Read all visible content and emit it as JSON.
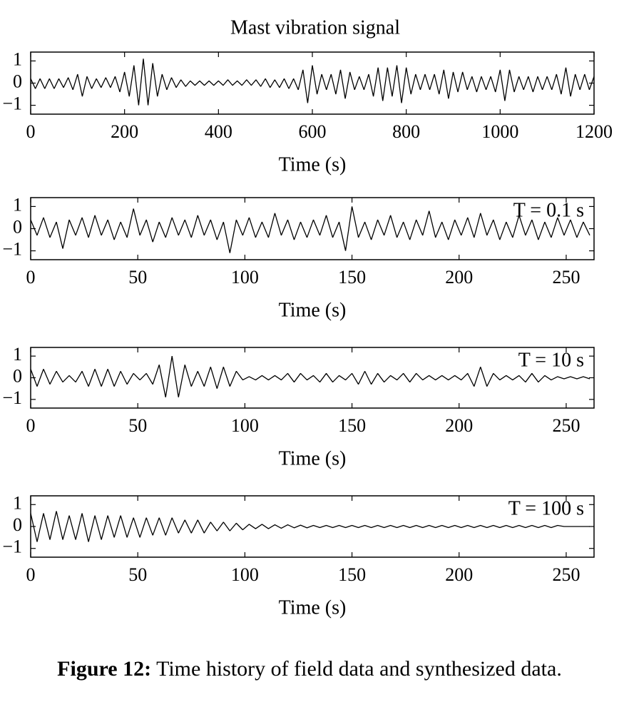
{
  "chart_data": [
    {
      "type": "line",
      "title": "Mast vibration signal",
      "xlabel": "Time (s)",
      "color": "#000000",
      "xlim": [
        0,
        1200
      ],
      "ylim": [
        -1.4,
        1.4
      ],
      "xticks": [
        0,
        200,
        400,
        600,
        800,
        1000,
        1200
      ],
      "yticks": [
        1,
        0,
        {
          "value": -1,
          "label": "−1"
        }
      ],
      "x": [
        0,
        10,
        20,
        30,
        40,
        50,
        60,
        70,
        80,
        90,
        100,
        110,
        120,
        130,
        140,
        150,
        160,
        170,
        180,
        190,
        200,
        210,
        220,
        230,
        240,
        250,
        260,
        270,
        280,
        290,
        300,
        310,
        320,
        330,
        340,
        350,
        360,
        370,
        380,
        390,
        400,
        410,
        420,
        430,
        440,
        450,
        460,
        470,
        480,
        490,
        500,
        510,
        520,
        530,
        540,
        550,
        560,
        570,
        580,
        590,
        600,
        610,
        620,
        630,
        640,
        650,
        660,
        670,
        680,
        690,
        700,
        710,
        720,
        730,
        740,
        750,
        760,
        770,
        780,
        790,
        800,
        810,
        820,
        830,
        840,
        850,
        860,
        870,
        880,
        890,
        900,
        910,
        920,
        930,
        940,
        950,
        960,
        970,
        980,
        990,
        1000,
        1010,
        1020,
        1030,
        1040,
        1050,
        1060,
        1070,
        1080,
        1090,
        1100,
        1110,
        1120,
        1130,
        1140,
        1150,
        1160,
        1170,
        1180,
        1190,
        1200
      ],
      "values": [
        0.2,
        -0.25,
        0.2,
        -0.25,
        0.2,
        -0.25,
        0.2,
        -0.2,
        0.25,
        -0.3,
        0.4,
        -0.6,
        0.3,
        -0.25,
        0.2,
        -0.2,
        0.25,
        -0.2,
        0.3,
        -0.4,
        0.5,
        -0.6,
        0.8,
        -1.0,
        1.1,
        -1.0,
        0.9,
        -0.6,
        0.4,
        -0.3,
        0.25,
        -0.2,
        0.15,
        -0.15,
        0.1,
        -0.1,
        0.1,
        -0.1,
        0.1,
        -0.1,
        0.1,
        -0.1,
        0.15,
        -0.1,
        0.1,
        -0.1,
        0.15,
        -0.1,
        0.15,
        -0.15,
        0.2,
        -0.2,
        0.15,
        -0.2,
        0.2,
        -0.25,
        0.2,
        -0.3,
        0.6,
        -0.9,
        0.8,
        -0.5,
        0.4,
        -0.3,
        0.4,
        -0.5,
        0.6,
        -0.7,
        0.5,
        -0.3,
        0.3,
        -0.3,
        0.4,
        -0.6,
        0.7,
        -0.8,
        0.7,
        -0.6,
        0.8,
        -0.9,
        0.7,
        -0.5,
        0.4,
        -0.3,
        0.4,
        -0.3,
        0.4,
        -0.5,
        0.6,
        -0.7,
        0.5,
        -0.4,
        0.5,
        -0.3,
        0.3,
        -0.4,
        0.3,
        -0.3,
        0.3,
        -0.4,
        0.6,
        -0.8,
        0.6,
        -0.4,
        0.3,
        -0.3,
        0.3,
        -0.4,
        0.3,
        -0.3,
        0.3,
        -0.3,
        0.4,
        -0.5,
        0.7,
        -0.6,
        0.4,
        -0.3,
        0.4,
        -0.3,
        0.3
      ]
    },
    {
      "type": "line",
      "annotation": "T = 0.1 s",
      "xlabel": "Time (s)",
      "color": "#000000",
      "xlim": [
        0,
        263
      ],
      "ylim": [
        -1.4,
        1.4
      ],
      "xticks": [
        0,
        50,
        100,
        150,
        200,
        250
      ],
      "yticks": [
        1,
        0,
        {
          "value": -1,
          "label": "−1"
        }
      ],
      "x": [
        0,
        3,
        6,
        9,
        12,
        15,
        18,
        21,
        24,
        27,
        30,
        33,
        36,
        39,
        42,
        45,
        48,
        51,
        54,
        57,
        60,
        63,
        66,
        69,
        72,
        75,
        78,
        81,
        84,
        87,
        90,
        93,
        96,
        99,
        102,
        105,
        108,
        111,
        114,
        117,
        120,
        123,
        126,
        129,
        132,
        135,
        138,
        141,
        144,
        147,
        150,
        153,
        156,
        159,
        162,
        165,
        168,
        171,
        174,
        177,
        180,
        183,
        186,
        189,
        192,
        195,
        198,
        201,
        204,
        207,
        210,
        213,
        216,
        219,
        222,
        225,
        228,
        231,
        234,
        237,
        240,
        243,
        246,
        249,
        252,
        255,
        258,
        261
      ],
      "values": [
        0.4,
        -0.3,
        0.5,
        -0.4,
        0.3,
        -0.9,
        0.4,
        -0.3,
        0.5,
        -0.4,
        0.6,
        -0.3,
        0.4,
        -0.5,
        0.3,
        -0.4,
        0.9,
        -0.3,
        0.4,
        -0.6,
        0.3,
        -0.4,
        0.5,
        -0.3,
        0.4,
        -0.4,
        0.6,
        -0.3,
        0.4,
        -0.5,
        0.3,
        -1.1,
        0.4,
        -0.3,
        0.5,
        -0.4,
        0.3,
        -0.4,
        0.7,
        -0.3,
        0.4,
        -0.5,
        0.3,
        -0.4,
        0.4,
        -0.3,
        0.6,
        -0.4,
        0.3,
        -1.0,
        1.0,
        -0.4,
        0.3,
        -0.5,
        0.4,
        -0.3,
        0.6,
        -0.4,
        0.3,
        -0.5,
        0.4,
        -0.3,
        0.8,
        -0.4,
        0.3,
        -0.5,
        0.4,
        -0.3,
        0.5,
        -0.4,
        0.7,
        -0.3,
        0.4,
        -0.5,
        0.3,
        -0.4,
        0.6,
        -0.3,
        0.4,
        -0.5,
        0.3,
        -0.4,
        0.5,
        -0.3,
        0.4,
        -0.4,
        0.3,
        -0.3
      ]
    },
    {
      "type": "line",
      "annotation": "T = 10 s",
      "xlabel": "Time (s)",
      "color": "#000000",
      "xlim": [
        0,
        263
      ],
      "ylim": [
        -1.4,
        1.4
      ],
      "xticks": [
        0,
        50,
        100,
        150,
        200,
        250
      ],
      "yticks": [
        1,
        0,
        {
          "value": -1,
          "label": "−1"
        }
      ],
      "x": [
        0,
        3,
        6,
        9,
        12,
        15,
        18,
        21,
        24,
        27,
        30,
        33,
        36,
        39,
        42,
        45,
        48,
        51,
        54,
        57,
        60,
        63,
        66,
        69,
        72,
        75,
        78,
        81,
        84,
        87,
        90,
        93,
        96,
        99,
        102,
        105,
        108,
        111,
        114,
        117,
        120,
        123,
        126,
        129,
        132,
        135,
        138,
        141,
        144,
        147,
        150,
        153,
        156,
        159,
        162,
        165,
        168,
        171,
        174,
        177,
        180,
        183,
        186,
        189,
        192,
        195,
        198,
        201,
        204,
        207,
        210,
        213,
        216,
        219,
        222,
        225,
        228,
        231,
        234,
        237,
        240,
        243,
        246,
        249,
        252,
        255,
        258,
        261
      ],
      "values": [
        0.4,
        -0.4,
        0.4,
        -0.3,
        0.3,
        -0.2,
        0.1,
        -0.2,
        0.3,
        -0.4,
        0.4,
        -0.4,
        0.4,
        -0.4,
        0.3,
        -0.3,
        0.2,
        -0.1,
        0.2,
        -0.3,
        0.6,
        -0.9,
        1.0,
        -0.9,
        0.6,
        -0.4,
        0.3,
        -0.4,
        0.5,
        -0.5,
        0.5,
        -0.4,
        0.3,
        -0.1,
        0.05,
        -0.1,
        0.1,
        -0.1,
        0.1,
        -0.1,
        0.2,
        -0.2,
        0.2,
        -0.1,
        0.1,
        -0.2,
        0.2,
        -0.2,
        0.1,
        -0.1,
        0.2,
        -0.3,
        0.3,
        -0.3,
        0.2,
        -0.2,
        0.1,
        -0.1,
        0.2,
        -0.2,
        0.2,
        -0.1,
        0.1,
        -0.1,
        0.1,
        -0.1,
        0.1,
        -0.1,
        0.2,
        -0.4,
        0.5,
        -0.4,
        0.2,
        -0.1,
        0.1,
        -0.1,
        0.1,
        -0.2,
        0.2,
        -0.2,
        0.1,
        -0.1,
        0.05,
        -0.05,
        0.05,
        -0.05,
        0.05,
        -0.05
      ]
    },
    {
      "type": "line",
      "annotation": "T = 100 s",
      "xlabel": "Time (s)",
      "color": "#000000",
      "xlim": [
        0,
        263
      ],
      "ylim": [
        -1.4,
        1.4
      ],
      "xticks": [
        0,
        50,
        100,
        150,
        200,
        250
      ],
      "yticks": [
        1,
        0,
        {
          "value": -1,
          "label": "−1"
        }
      ],
      "x": [
        0,
        3,
        6,
        9,
        12,
        15,
        18,
        21,
        24,
        27,
        30,
        33,
        36,
        39,
        42,
        45,
        48,
        51,
        54,
        57,
        60,
        63,
        66,
        69,
        72,
        75,
        78,
        81,
        84,
        87,
        90,
        93,
        96,
        99,
        102,
        105,
        108,
        111,
        114,
        117,
        120,
        123,
        126,
        129,
        132,
        135,
        138,
        141,
        144,
        147,
        150,
        153,
        156,
        159,
        162,
        165,
        168,
        171,
        174,
        177,
        180,
        183,
        186,
        189,
        192,
        195,
        198,
        201,
        204,
        207,
        210,
        213,
        216,
        219,
        222,
        225,
        228,
        231,
        234,
        237,
        240,
        243,
        246,
        249,
        252,
        255,
        258,
        261
      ],
      "values": [
        0.6,
        -0.7,
        0.6,
        -0.6,
        0.7,
        -0.6,
        0.5,
        -0.6,
        0.6,
        -0.7,
        0.5,
        -0.6,
        0.5,
        -0.5,
        0.5,
        -0.5,
        0.4,
        -0.5,
        0.4,
        -0.4,
        0.4,
        -0.4,
        0.4,
        -0.3,
        0.3,
        -0.3,
        0.3,
        -0.3,
        0.2,
        -0.2,
        0.2,
        -0.2,
        0.15,
        -0.15,
        0.1,
        -0.1,
        0.1,
        -0.1,
        0.08,
        -0.08,
        0.08,
        -0.06,
        0.06,
        -0.06,
        0.05,
        -0.05,
        0.05,
        -0.05,
        0.05,
        -0.05,
        0.05,
        -0.05,
        0.05,
        -0.05,
        0.05,
        -0.05,
        0.05,
        -0.05,
        0.05,
        -0.05,
        0.05,
        -0.05,
        0.05,
        -0.05,
        0.05,
        -0.05,
        0.05,
        -0.05,
        0.05,
        -0.05,
        0.05,
        -0.05,
        0.05,
        -0.05,
        0.05,
        -0.05,
        0.05,
        -0.05,
        0.05,
        -0.05,
        0.05,
        -0.05,
        0.05,
        0,
        0,
        0,
        0,
        0
      ]
    }
  ],
  "caption": {
    "label": "Figure 12:",
    "text": "Time history of field data and synthesized data."
  }
}
